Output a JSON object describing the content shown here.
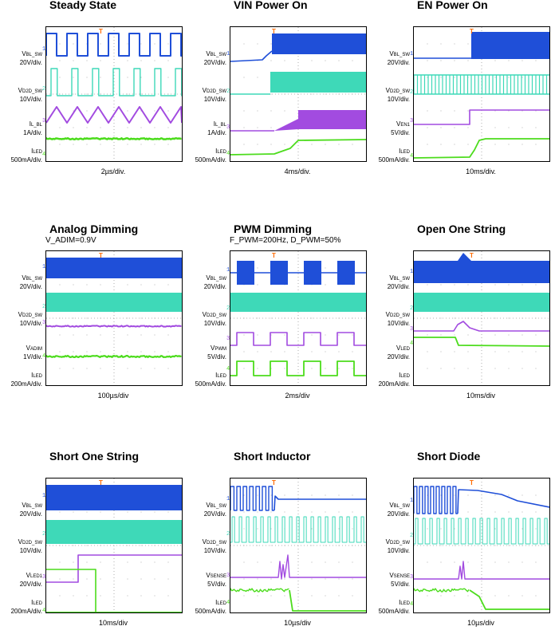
{
  "colors": {
    "sw": "#1f4fd8",
    "d2d": "#3ed9b8",
    "mid": "#a24be0",
    "led": "#4cdc1c",
    "trigger": "#ff6a00",
    "grid": "#9a9a9a",
    "frame": "#000000"
  },
  "chart_data": [
    {
      "type": "line",
      "title": "Steady State",
      "subtitle": "",
      "time_div": "2µs/div.",
      "traces": [
        {
          "name": "V",
          "sub": "BL_SW",
          "scale": "20V/div.",
          "marker": "1",
          "color": "#1f4fd8"
        },
        {
          "name": "V",
          "sub": "D2D_SW",
          "scale": "10V/div.",
          "marker": "2",
          "color": "#3ed9b8"
        },
        {
          "name": "I",
          "sub": "L_BL",
          "scale": "1A/div.",
          "marker": "3",
          "color": "#a24be0"
        },
        {
          "name": "I",
          "sub": "LED",
          "scale": "500mA/div.",
          "marker": "4",
          "color": "#4cdc1c"
        }
      ]
    },
    {
      "type": "line",
      "title": "VIN Power On",
      "subtitle": "",
      "time_div": "4ms/div.",
      "traces": [
        {
          "name": "V",
          "sub": "BL_SW",
          "scale": "20V/div.",
          "marker": "1",
          "color": "#1f4fd8"
        },
        {
          "name": "V",
          "sub": "D2D_SW",
          "scale": "10V/div.",
          "marker": "2",
          "color": "#3ed9b8"
        },
        {
          "name": "I",
          "sub": "L_BL",
          "scale": "1A/div.",
          "marker": "3",
          "color": "#a24be0"
        },
        {
          "name": "I",
          "sub": "LED",
          "scale": "500mA/div.",
          "marker": "4",
          "color": "#4cdc1c"
        }
      ]
    },
    {
      "type": "line",
      "title": "EN Power On",
      "subtitle": "",
      "time_div": "10ms/div.",
      "traces": [
        {
          "name": "V",
          "sub": "BL_SW",
          "scale": "20V/div.",
          "marker": "1",
          "color": "#1f4fd8"
        },
        {
          "name": "V",
          "sub": "D2D_SW",
          "scale": "10V/div.",
          "marker": "2",
          "color": "#3ed9b8"
        },
        {
          "name": "V",
          "sub": "EN1",
          "scale": "5V/div.",
          "marker": "3",
          "color": "#a24be0"
        },
        {
          "name": "I",
          "sub": "LED",
          "scale": "500mA/div.",
          "marker": "4",
          "color": "#4cdc1c"
        }
      ]
    },
    {
      "type": "line",
      "title": "Analog  Dimming",
      "subtitle": "V_ADIM=0.9V",
      "time_div": "100µs/div",
      "traces": [
        {
          "name": "V",
          "sub": "BL_SW",
          "scale": "20V/div.",
          "marker": "1",
          "color": "#1f4fd8"
        },
        {
          "name": "V",
          "sub": "D2D_SW",
          "scale": "10V/div.",
          "marker": "2",
          "color": "#3ed9b8"
        },
        {
          "name": "V",
          "sub": "ADIM",
          "scale": "1V/div.",
          "marker": "3",
          "color": "#a24be0"
        },
        {
          "name": "I",
          "sub": "LED",
          "scale": "200mA/div.",
          "marker": "4",
          "color": "#4cdc1c"
        }
      ]
    },
    {
      "type": "line",
      "title": "PWM Dimming",
      "subtitle": "F_PWM=200Hz, D_PWM=50%",
      "time_div": "2ms/div",
      "traces": [
        {
          "name": "V",
          "sub": "BL_SW",
          "scale": "20V/div.",
          "marker": "1",
          "color": "#1f4fd8"
        },
        {
          "name": "V",
          "sub": "D2D_SW",
          "scale": "10V/div.",
          "marker": "2",
          "color": "#3ed9b8"
        },
        {
          "name": "V",
          "sub": "PWM",
          "scale": "5V/div.",
          "marker": "3",
          "color": "#a24be0"
        },
        {
          "name": "I",
          "sub": "LED",
          "scale": "500mA/div.",
          "marker": "4",
          "color": "#4cdc1c"
        }
      ]
    },
    {
      "type": "line",
      "title": "Open One String",
      "subtitle": "",
      "time_div": "10ms/div",
      "traces": [
        {
          "name": "V",
          "sub": "BL_SW",
          "scale": "20V/div.",
          "marker": "1",
          "color": "#1f4fd8"
        },
        {
          "name": "V",
          "sub": "D2D_SW",
          "scale": "10V/div.",
          "marker": "2",
          "color": "#3ed9b8"
        },
        {
          "name": "V",
          "sub": "LED",
          "scale": "20V/div.",
          "marker": "3",
          "color": "#a24be0"
        },
        {
          "name": "I",
          "sub": "LED",
          "scale": "200mA/div.",
          "marker": "4",
          "color": "#4cdc1c"
        }
      ]
    },
    {
      "type": "line",
      "title": "Short One String",
      "subtitle": "",
      "time_div": "10ms/div",
      "traces": [
        {
          "name": "V",
          "sub": "BL_SW",
          "scale": "20V/div.",
          "marker": "1",
          "color": "#1f4fd8"
        },
        {
          "name": "V",
          "sub": "D2D_SW",
          "scale": "10V/div.",
          "marker": "2",
          "color": "#3ed9b8"
        },
        {
          "name": "V",
          "sub": "LED1",
          "scale": "20V/div.",
          "marker": "3",
          "color": "#a24be0"
        },
        {
          "name": "I",
          "sub": "LED",
          "scale": "200mA/div.",
          "marker": "4",
          "color": "#4cdc1c"
        }
      ]
    },
    {
      "type": "line",
      "title": "Short Inductor",
      "subtitle": "",
      "time_div": "10µs/div",
      "traces": [
        {
          "name": "V",
          "sub": "BL_SW",
          "scale": "20V/div.",
          "marker": "1",
          "color": "#1f4fd8"
        },
        {
          "name": "V",
          "sub": "D2D_SW",
          "scale": "10V/div.",
          "marker": "2",
          "color": "#3ed9b8"
        },
        {
          "name": "V",
          "sub": "SENSE",
          "scale": "5V/div.",
          "marker": "3",
          "color": "#a24be0"
        },
        {
          "name": "I",
          "sub": "LED",
          "scale": "500mA/div.",
          "marker": "4",
          "color": "#4cdc1c"
        }
      ]
    },
    {
      "type": "line",
      "title": "Short Diode",
      "subtitle": "",
      "time_div": "10µs/div",
      "traces": [
        {
          "name": "V",
          "sub": "BL_SW",
          "scale": "20V/div.",
          "marker": "1",
          "color": "#1f4fd8"
        },
        {
          "name": "V",
          "sub": "D2D_SW",
          "scale": "10V/div.",
          "marker": "2",
          "color": "#3ed9b8"
        },
        {
          "name": "V",
          "sub": "SENSE",
          "scale": "5V/div.",
          "marker": "3",
          "color": "#a24be0"
        },
        {
          "name": "I",
          "sub": "LED",
          "scale": "500mA/div.",
          "marker": "4",
          "color": "#4cdc1c"
        }
      ]
    }
  ]
}
